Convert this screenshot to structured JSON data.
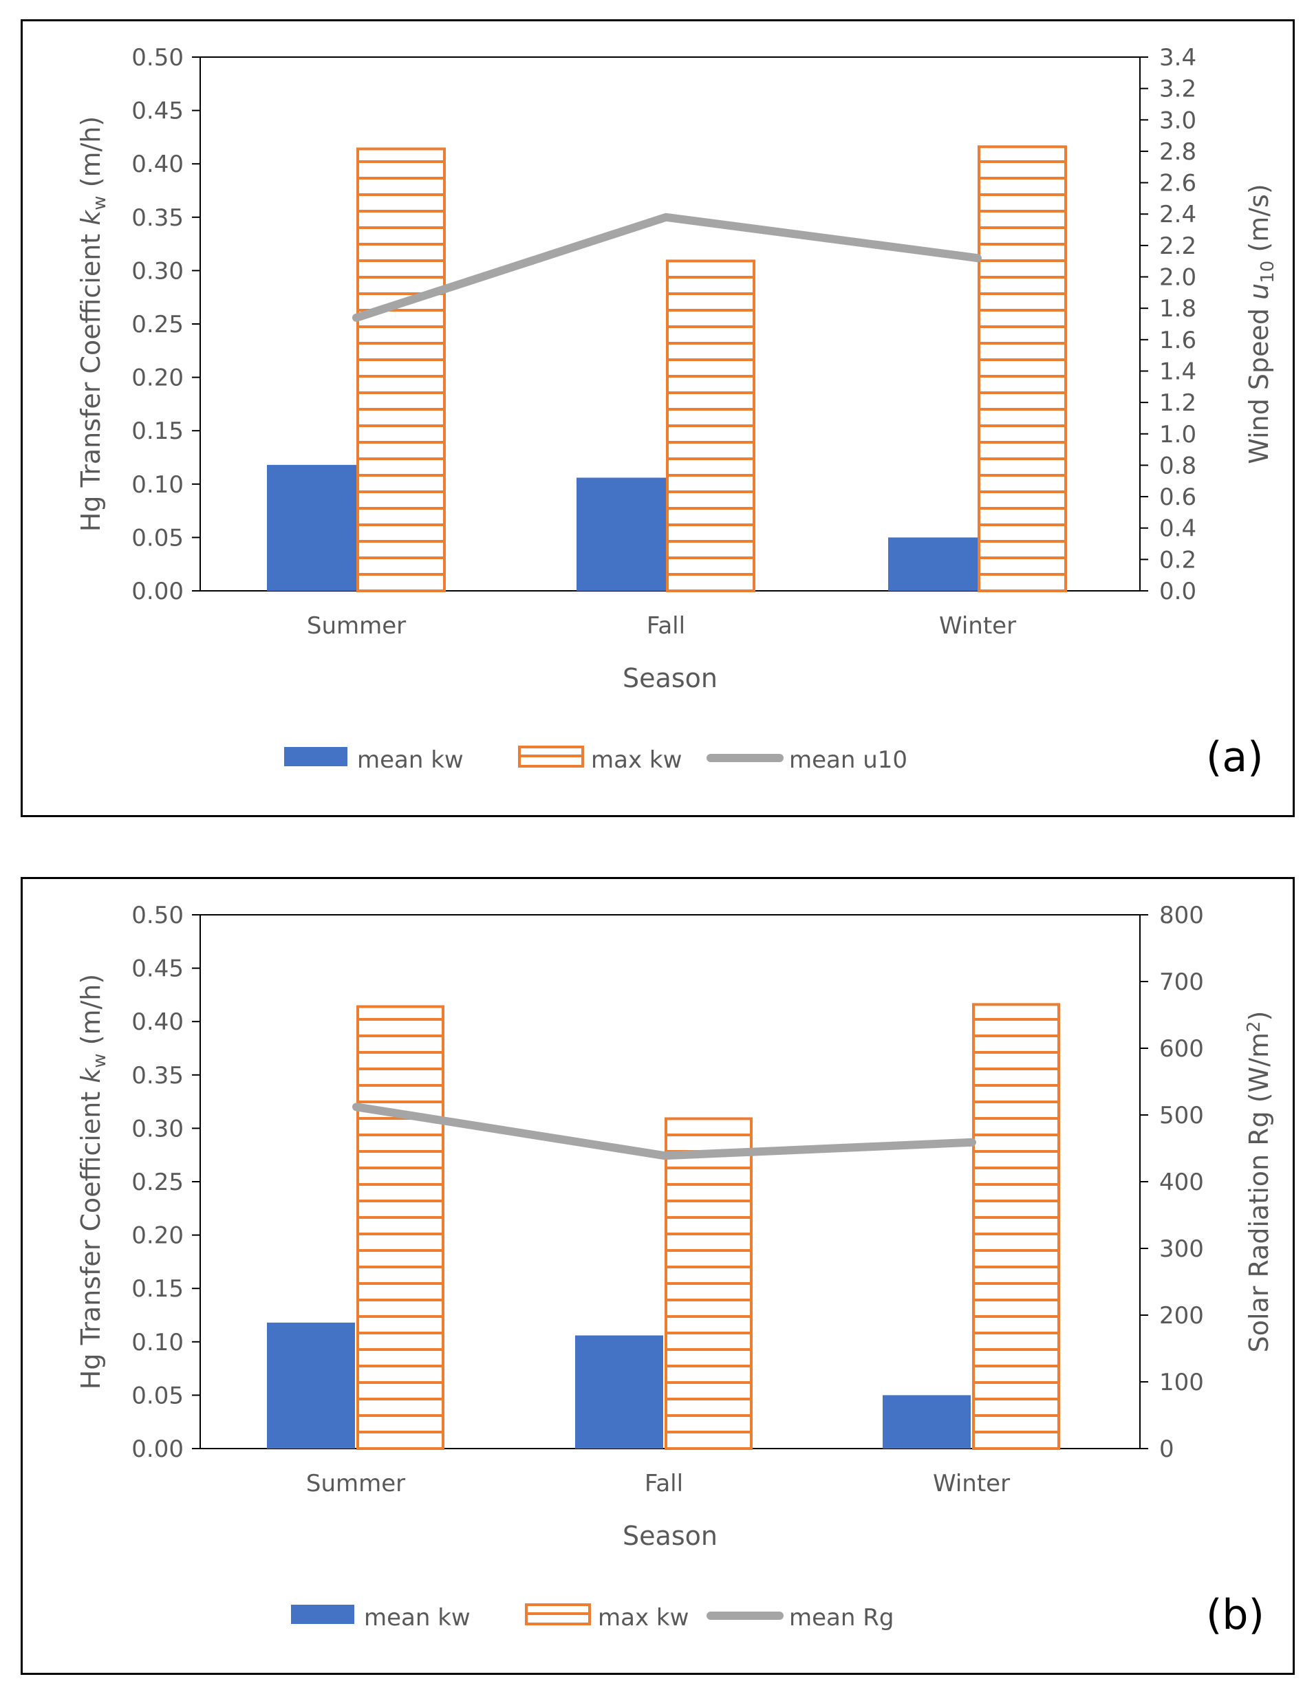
{
  "chart_data": [
    {
      "type": "bar",
      "categories": [
        "Summer",
        "Fall",
        "Winter"
      ],
      "series": [
        {
          "name": "mean kw",
          "axis": "left",
          "style": "solid",
          "color": "#4472C4",
          "values": [
            0.118,
            0.106,
            0.05
          ]
        },
        {
          "name": "max kw",
          "axis": "left",
          "style": "horizontal-stripes",
          "color": "#ED7D31",
          "values": [
            0.414,
            0.309,
            0.416
          ]
        },
        {
          "name": "mean u10",
          "axis": "right",
          "type": "line",
          "color": "#A5A5A5",
          "values": [
            1.74,
            2.38,
            2.12
          ]
        }
      ],
      "xlabel": "Season",
      "ylabel": {
        "main": "Hg Transfer Coefficient ",
        "var": "k",
        "sub": "w",
        "unit": " (m/h)"
      },
      "y2label": {
        "main": "Wind Speed ",
        "var": "u",
        "sub": "10",
        "unit": " (m/s)"
      },
      "ylim": [
        0,
        0.5
      ],
      "y2lim": [
        0,
        3.4
      ],
      "yticks": [
        "0.00",
        "0.05",
        "0.10",
        "0.15",
        "0.20",
        "0.25",
        "0.30",
        "0.35",
        "0.40",
        "0.45",
        "0.50"
      ],
      "y2ticks": [
        "0.0",
        "0.2",
        "0.4",
        "0.6",
        "0.8",
        "1.0",
        "1.2",
        "1.4",
        "1.6",
        "1.8",
        "2.0",
        "2.2",
        "2.4",
        "2.6",
        "2.8",
        "3.0",
        "3.2",
        "3.4"
      ],
      "legend_position": "bottom",
      "panel_label": "(a)"
    },
    {
      "type": "bar",
      "categories": [
        "Summer",
        "Fall",
        "Winter"
      ],
      "series": [
        {
          "name": "mean kw",
          "axis": "left",
          "style": "solid",
          "color": "#4472C4",
          "values": [
            0.118,
            0.106,
            0.05
          ]
        },
        {
          "name": "max kw",
          "axis": "left",
          "style": "horizontal-stripes",
          "color": "#ED7D31",
          "values": [
            0.414,
            0.309,
            0.416
          ]
        },
        {
          "name": "mean Rg",
          "axis": "right",
          "type": "line",
          "color": "#A5A5A5",
          "values": [
            512,
            439,
            459
          ]
        }
      ],
      "xlabel": "Season",
      "ylabel": {
        "main": "Hg Transfer Coefficient ",
        "var": "k",
        "sub": "w",
        "unit": " (m/h)"
      },
      "y2label": {
        "main": "Solar Radiation Rg (W/m",
        "sup": "2",
        "unit": ")"
      },
      "ylim": [
        0,
        0.5
      ],
      "y2lim": [
        0,
        800
      ],
      "yticks": [
        "0.00",
        "0.05",
        "0.10",
        "0.15",
        "0.20",
        "0.25",
        "0.30",
        "0.35",
        "0.40",
        "0.45",
        "0.50"
      ],
      "y2ticks": [
        "0",
        "100",
        "200",
        "300",
        "400",
        "500",
        "600",
        "700",
        "800"
      ],
      "legend_position": "bottom",
      "panel_label": "(b)"
    }
  ]
}
